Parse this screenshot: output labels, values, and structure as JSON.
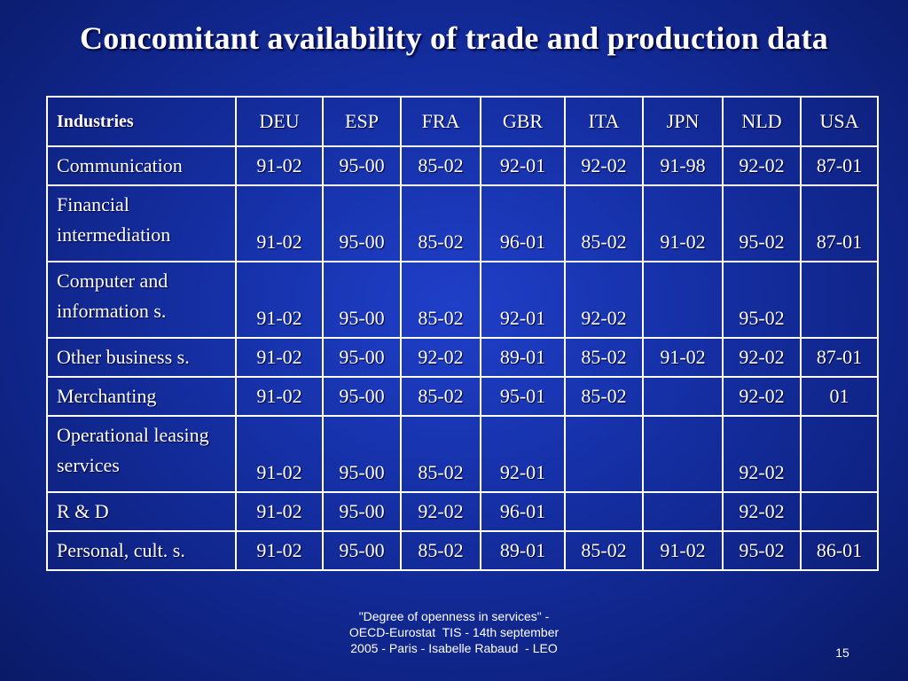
{
  "slide": {
    "title": "Concomitant availability of  trade and production data",
    "page_number": "15",
    "footer_lines": [
      "\"Degree of openness in services\" -",
      "OECD-Eurostat  TIS - 14th september",
      "2005 - Paris - Isabelle Rabaud  - LEO"
    ]
  },
  "table": {
    "headers": [
      "Industries",
      "DEU",
      "ESP",
      "FRA",
      "GBR",
      "ITA",
      "JPN",
      "NLD",
      "USA"
    ],
    "rows": [
      {
        "industry": "Communication",
        "values": [
          "91-02",
          "95-00",
          "85-02",
          "92-01",
          "92-02",
          "91-98",
          "92-02",
          "87-01"
        ]
      },
      {
        "industry": "Financial intermediation",
        "values": [
          "91-02",
          "95-00",
          "85-02",
          "96-01",
          "85-02",
          "91-02",
          "95-02",
          "87-01"
        ]
      },
      {
        "industry": "Computer and information s.",
        "values": [
          "91-02",
          "95-00",
          "85-02",
          "92-01",
          "92-02",
          "",
          "95-02",
          ""
        ]
      },
      {
        "industry": "Other business s.",
        "values": [
          "91-02",
          "95-00",
          "92-02",
          "89-01",
          "85-02",
          "91-02",
          "92-02",
          "87-01"
        ]
      },
      {
        "industry": "Merchanting",
        "values": [
          "91-02",
          "95-00",
          "85-02",
          "95-01",
          "85-02",
          "",
          "92-02",
          "01"
        ]
      },
      {
        "industry": "Operational leasing services",
        "values": [
          "91-02",
          "95-00",
          "85-02",
          "92-01",
          "",
          "",
          "92-02",
          ""
        ]
      },
      {
        "industry": "R & D",
        "values": [
          "91-02",
          "95-00",
          "92-02",
          "96-01",
          "",
          "",
          "92-02",
          ""
        ]
      },
      {
        "industry": "Personal, cult. s.",
        "values": [
          "91-02",
          "95-00",
          "85-02",
          "89-01",
          "85-02",
          "91-02",
          "95-02",
          "86-01"
        ]
      }
    ]
  }
}
